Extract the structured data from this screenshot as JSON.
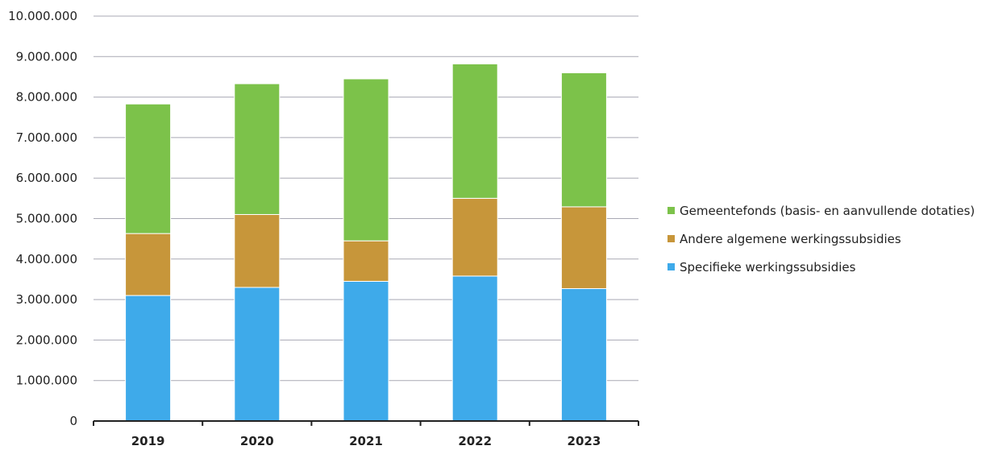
{
  "chart_data": {
    "type": "bar",
    "stacked": true,
    "categories": [
      "2019",
      "2020",
      "2021",
      "2022",
      "2023"
    ],
    "series": [
      {
        "name": "Specifieke werkingssubsidies",
        "color": "#3eaaea",
        "values": [
          3100000,
          3300000,
          3450000,
          3580000,
          3270000
        ]
      },
      {
        "name": "Andere algemene werkingssubsidies",
        "color": "#c7963a",
        "values": [
          1530000,
          1800000,
          1000000,
          1920000,
          2020000
        ]
      },
      {
        "name": "Gemeentefonds (basis- en aanvullende dotaties)",
        "color": "#7cc24a",
        "values": [
          3200000,
          3230000,
          4000000,
          3320000,
          3310000
        ]
      }
    ],
    "ylim": [
      0,
      10000000
    ],
    "yticks": [
      0,
      1000000,
      2000000,
      3000000,
      4000000,
      5000000,
      6000000,
      7000000,
      8000000,
      9000000,
      10000000
    ],
    "ytick_labels": [
      "0",
      "1.000.000",
      "2.000.000",
      "3.000.000",
      "4.000.000",
      "5.000.000",
      "6.000.000",
      "7.000.000",
      "8.000.000",
      "9.000.000",
      "10.000.000"
    ],
    "grid": true,
    "legend_position": "right",
    "legend_order": [
      "Gemeentefonds (basis- en aanvullende dotaties)",
      "Andere algemene werkingssubsidies",
      "Specifieke werkingssubsidies"
    ]
  }
}
